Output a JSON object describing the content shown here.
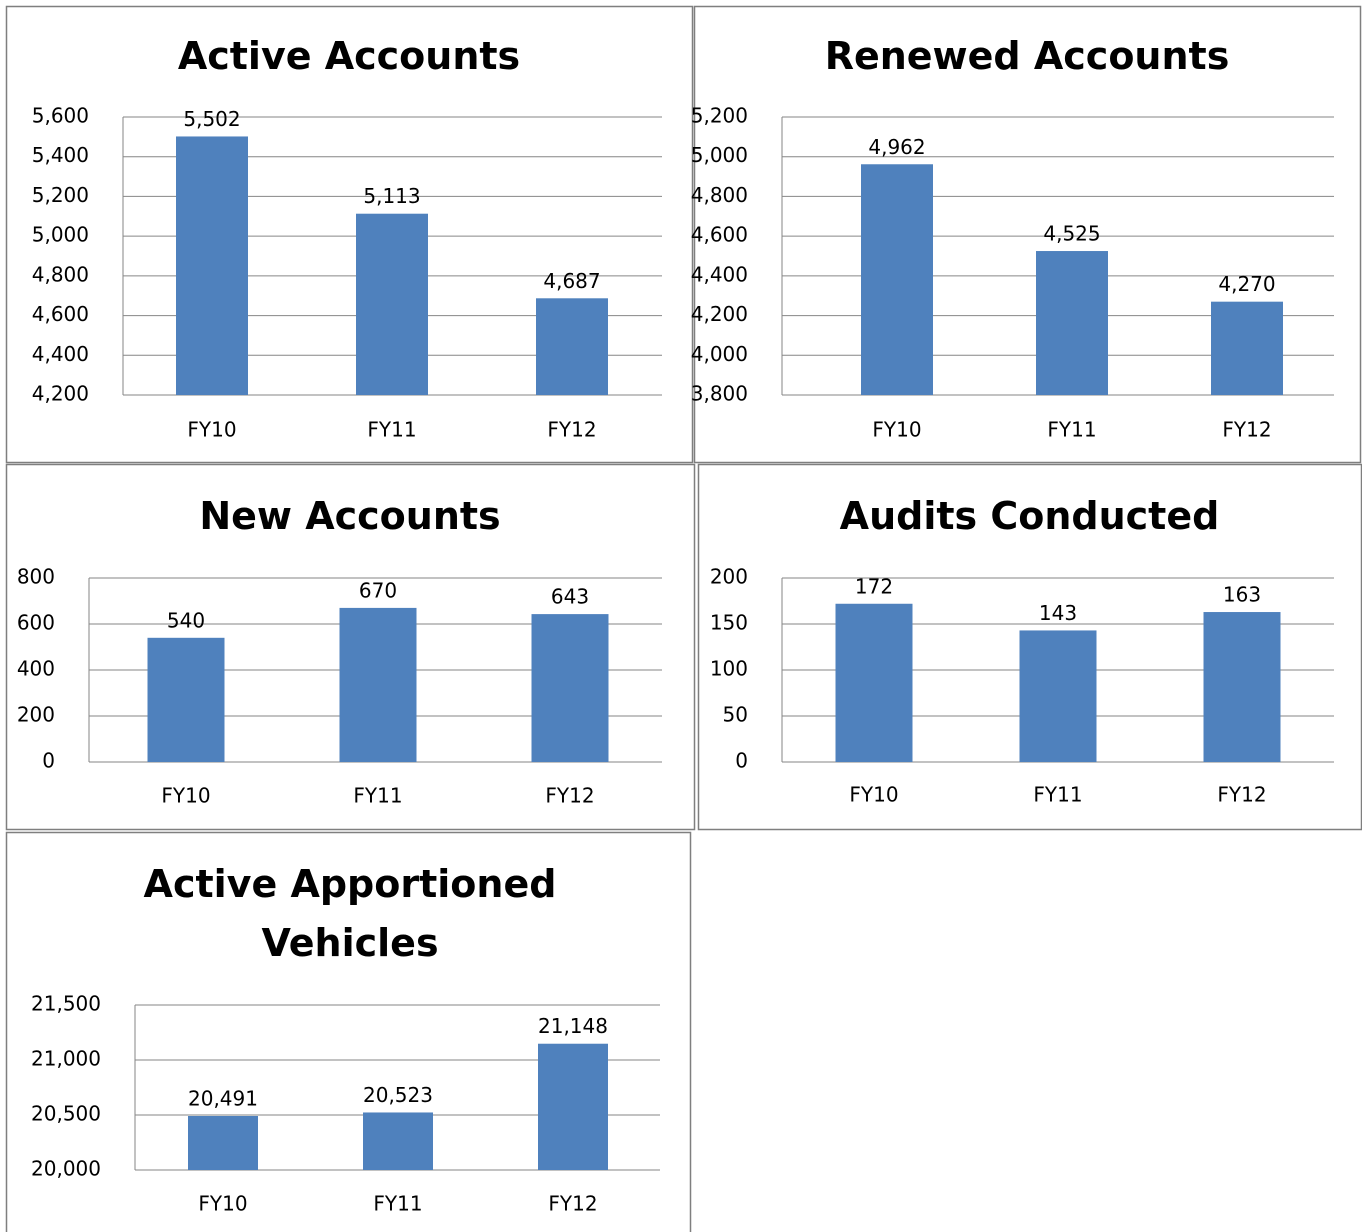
{
  "chart_data": [
    {
      "type": "bar",
      "title": "Active Accounts",
      "categories": [
        "FY10",
        "FY11",
        "FY12"
      ],
      "values": [
        5502,
        5113,
        4687
      ],
      "value_labels": [
        "5,502",
        "5,113",
        "4,687"
      ],
      "color": "#4f81bd",
      "ylim": [
        4200,
        5600
      ],
      "yticks": [
        {
          "value": 4200,
          "label": "4,200"
        },
        {
          "value": 4400,
          "label": "4,400"
        },
        {
          "value": 4600,
          "label": "4,600"
        },
        {
          "value": 4800,
          "label": "4,800"
        },
        {
          "value": 5000,
          "label": "5,000"
        },
        {
          "value": 5200,
          "label": "5,200"
        },
        {
          "value": 5400,
          "label": "5,400"
        },
        {
          "value": 5600,
          "label": "5,600"
        }
      ],
      "grid": true
    },
    {
      "type": "bar",
      "title": "Renewed Accounts",
      "categories": [
        "FY10",
        "FY11",
        "FY12"
      ],
      "values": [
        4962,
        4525,
        4270
      ],
      "value_labels": [
        "4,962",
        "4,525",
        "4,270"
      ],
      "color": "#4f81bd",
      "ylim": [
        3800,
        5200
      ],
      "yticks": [
        {
          "value": 3800,
          "label": "3,800"
        },
        {
          "value": 4000,
          "label": "4,000"
        },
        {
          "value": 4200,
          "label": "4,200"
        },
        {
          "value": 4400,
          "label": "4,400"
        },
        {
          "value": 4600,
          "label": "4,600"
        },
        {
          "value": 4800,
          "label": "4,800"
        },
        {
          "value": 5000,
          "label": "5,000"
        },
        {
          "value": 5200,
          "label": "5,200"
        }
      ],
      "grid": true
    },
    {
      "type": "bar",
      "title": "New Accounts",
      "categories": [
        "FY10",
        "FY11",
        "FY12"
      ],
      "values": [
        540,
        670,
        643
      ],
      "color": "#4f81bd",
      "ylim": [
        0,
        800
      ],
      "yticks": [
        0,
        200,
        400,
        600,
        800
      ],
      "grid": true
    },
    {
      "type": "bar",
      "title": "Audits Conducted",
      "categories": [
        "FY10",
        "FY11",
        "FY12"
      ],
      "values": [
        172,
        143,
        163
      ],
      "color": "#4f81bd",
      "ylim": [
        0,
        200
      ],
      "yticks": [
        0,
        50,
        100,
        150,
        200
      ],
      "grid": true
    },
    {
      "type": "bar",
      "title": "Active Apportioned Vehicles",
      "categories": [
        "FY10",
        "FY11",
        "FY12"
      ],
      "values": [
        20491,
        20523,
        21148
      ],
      "value_labels": [
        "20,491",
        "20,523",
        "21,148"
      ],
      "color": "#4f81bd",
      "ylim": [
        20000,
        21500
      ],
      "yticks": [
        {
          "value": 20000,
          "label": "20,000"
        },
        {
          "value": 20500,
          "label": "20,500"
        },
        {
          "value": 21000,
          "label": "21,000"
        },
        {
          "value": 21500,
          "label": "21,500"
        }
      ],
      "grid": true
    }
  ]
}
